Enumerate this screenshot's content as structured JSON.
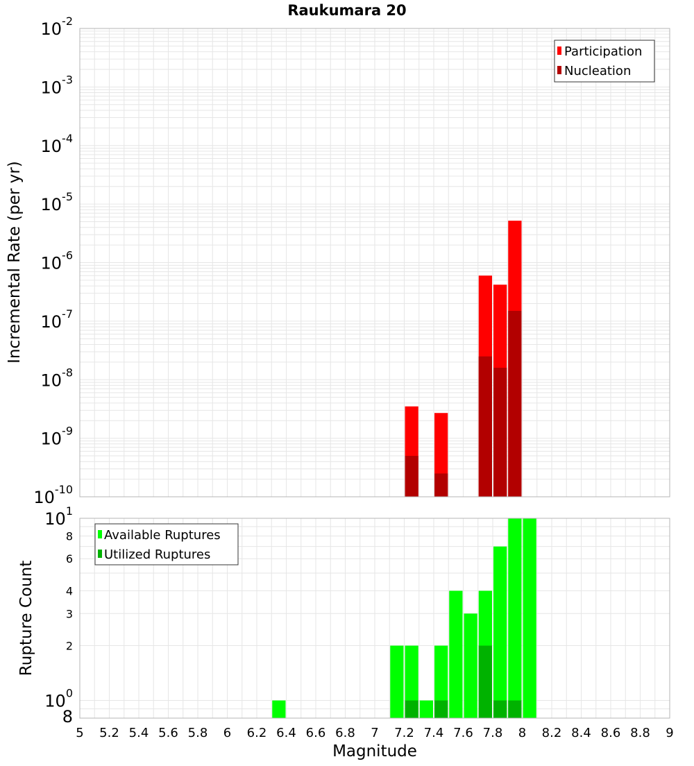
{
  "title": "Raukumara 20",
  "xlabel": "Magnitude",
  "colors": {
    "participation": "#ff0000",
    "nucleation": "#b20000",
    "available": "#00ff00",
    "utilized": "#00b200",
    "grid": "#e6e6e6",
    "frame": "#b4b4b4"
  },
  "chart_data": [
    {
      "type": "bar",
      "panel": "top",
      "title": "Raukumara 20",
      "ylabel": "Incremental Rate (per yr)",
      "yscale": "log",
      "ylim": [
        1e-10,
        0.01
      ],
      "xlim": [
        5,
        9
      ],
      "legend_position": "top-right",
      "y_ticks": [
        {
          "base": "10",
          "exp": "-10"
        },
        {
          "base": "10",
          "exp": "-9"
        },
        {
          "base": "10",
          "exp": "-8"
        },
        {
          "base": "10",
          "exp": "-7"
        },
        {
          "base": "10",
          "exp": "-6"
        },
        {
          "base": "10",
          "exp": "-5"
        },
        {
          "base": "10",
          "exp": "-4"
        },
        {
          "base": "10",
          "exp": "-3"
        },
        {
          "base": "10",
          "exp": "-2"
        }
      ],
      "x": [
        7.25,
        7.45,
        7.75,
        7.85,
        7.95
      ],
      "series": [
        {
          "name": "Participation",
          "values": [
            3.5e-09,
            2.7e-09,
            6e-07,
            4.2e-07,
            5.2e-06
          ]
        },
        {
          "name": "Nucleation",
          "values": [
            5e-10,
            2.5e-10,
            2.5e-08,
            1.6e-08,
            1.5e-07
          ]
        }
      ]
    },
    {
      "type": "bar",
      "panel": "bottom",
      "ylabel": "Rupture Count",
      "yscale": "log",
      "ylim": [
        0.8,
        10
      ],
      "xlim": [
        5,
        9
      ],
      "legend_position": "top-left",
      "y_ticks": [
        {
          "value": 0.8,
          "label": "8",
          "exp": ""
        },
        {
          "value": 1,
          "label": "10",
          "exp": "0"
        },
        {
          "value": 2,
          "label": "2",
          "exp": ""
        },
        {
          "value": 3,
          "label": "3",
          "exp": ""
        },
        {
          "value": 4,
          "label": "4",
          "exp": ""
        },
        {
          "value": 6,
          "label": "6",
          "exp": ""
        },
        {
          "value": 8,
          "label": "8",
          "exp": ""
        },
        {
          "value": 10,
          "label": "10",
          "exp": "1"
        }
      ],
      "x": [
        6.35,
        7.15,
        7.25,
        7.35,
        7.45,
        7.55,
        7.65,
        7.75,
        7.85,
        7.95,
        8.05
      ],
      "series": [
        {
          "name": "Available Ruptures",
          "values": [
            1,
            2,
            2,
            1,
            2,
            4,
            3,
            4,
            7,
            10,
            10
          ]
        },
        {
          "name": "Utilized Ruptures",
          "values": [
            0,
            0,
            1,
            0,
            1,
            0,
            0,
            2,
            1,
            1,
            0
          ]
        }
      ]
    }
  ],
  "x_tick_labels": [
    "5",
    "5.2",
    "5.4",
    "5.6",
    "5.8",
    "6",
    "6.2",
    "6.4",
    "6.6",
    "6.8",
    "7",
    "7.2",
    "7.4",
    "7.6",
    "7.8",
    "8",
    "8.2",
    "8.4",
    "8.6",
    "8.8",
    "9"
  ]
}
